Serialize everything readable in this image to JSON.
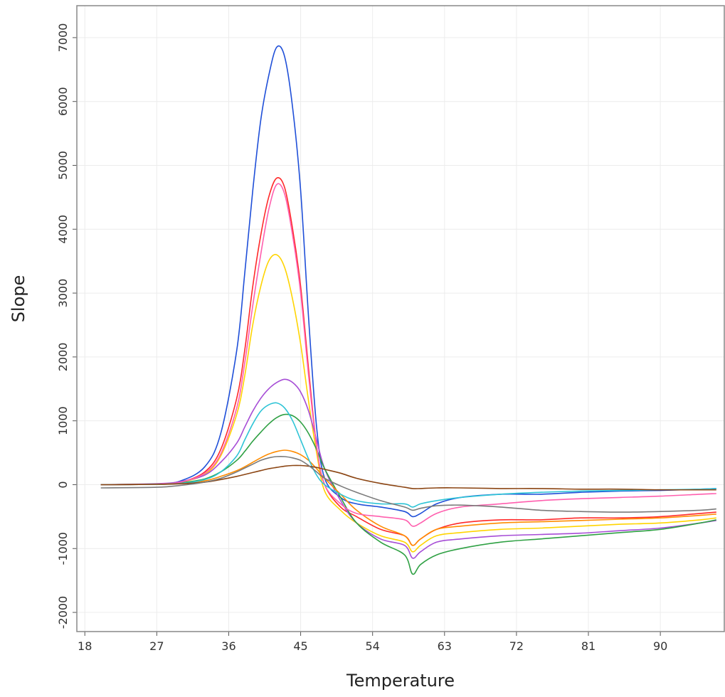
{
  "chart_data": {
    "type": "line",
    "title": "",
    "xlabel": "Temperature",
    "ylabel": "Slope",
    "xlim": [
      17,
      98
    ],
    "ylim": [
      -2300,
      7500
    ],
    "x_ticks": [
      18,
      27,
      36,
      45,
      54,
      63,
      72,
      81,
      90
    ],
    "x_tick_labels": [
      "18",
      "27",
      "36",
      "45",
      "54",
      "63",
      "72",
      "81",
      "90"
    ],
    "y_ticks": [
      -2000,
      -1000,
      0,
      1000,
      2000,
      3000,
      4000,
      5000,
      6000,
      7000
    ],
    "y_tick_labels": [
      "-2000",
      "-1000",
      "0",
      "1000",
      "2000",
      "3000",
      "4000",
      "5000",
      "6000",
      "7000"
    ],
    "grid": true,
    "legend": "none",
    "colors": [
      "#1f4fd8",
      "#ff2a2a",
      "#ffd400",
      "#a64dd6",
      "#2ea043",
      "#ff8c00",
      "#ff5fae",
      "#2ec4d6",
      "#8b4513",
      "#7a7a7a"
    ],
    "series": [
      {
        "x": [
          20,
          27,
          30,
          33,
          35,
          37,
          38,
          39,
          40,
          41,
          42,
          43,
          44,
          45,
          46,
          47,
          48,
          50,
          52,
          55,
          58,
          59,
          60,
          62,
          65,
          70,
          75,
          80,
          85,
          90,
          95,
          97
        ],
        "y": [
          0,
          10,
          60,
          280,
          800,
          2100,
          3300,
          4600,
          5700,
          6400,
          6850,
          6700,
          5900,
          4600,
          2600,
          900,
          100,
          -200,
          -300,
          -350,
          -420,
          -500,
          -450,
          -300,
          -200,
          -150,
          -150,
          -120,
          -100,
          -90,
          -70,
          -60
        ]
      },
      {
        "x": [
          20,
          27,
          30,
          33,
          35,
          37,
          38,
          39,
          40,
          41,
          42,
          43,
          44,
          45,
          46,
          47,
          48,
          50,
          52,
          55,
          58,
          59,
          60,
          62,
          65,
          70,
          75,
          80,
          85,
          90,
          95,
          97
        ],
        "y": [
          0,
          10,
          40,
          200,
          550,
          1350,
          2100,
          3100,
          3900,
          4500,
          4800,
          4650,
          4000,
          3100,
          1800,
          600,
          0,
          -350,
          -500,
          -700,
          -800,
          -950,
          -850,
          -700,
          -600,
          -550,
          -550,
          -520,
          -520,
          -500,
          -450,
          -430
        ]
      },
      {
        "x": [
          20,
          27,
          30,
          33,
          35,
          37,
          38,
          39,
          40,
          41,
          42,
          43,
          44,
          45,
          46,
          47,
          48,
          50,
          52,
          55,
          58,
          59,
          60,
          62,
          65,
          70,
          75,
          80,
          85,
          90,
          95,
          97
        ],
        "y": [
          0,
          10,
          40,
          160,
          450,
          1100,
          1700,
          2500,
          3100,
          3500,
          3600,
          3400,
          2900,
          2200,
          1300,
          500,
          -100,
          -400,
          -600,
          -800,
          -900,
          -1050,
          -950,
          -800,
          -750,
          -700,
          -680,
          -650,
          -620,
          -600,
          -550,
          -520
        ]
      },
      {
        "x": [
          20,
          27,
          30,
          33,
          35,
          37,
          38,
          39,
          40,
          41,
          42,
          43,
          44,
          45,
          46,
          47,
          48,
          50,
          52,
          55,
          58,
          59,
          60,
          62,
          65,
          70,
          75,
          80,
          85,
          90,
          95,
          97
        ],
        "y": [
          0,
          15,
          50,
          150,
          350,
          650,
          900,
          1150,
          1350,
          1500,
          1600,
          1650,
          1600,
          1450,
          1150,
          700,
          250,
          -250,
          -600,
          -850,
          -950,
          -1150,
          -1050,
          -900,
          -850,
          -800,
          -780,
          -760,
          -720,
          -680,
          -600,
          -560
        ]
      },
      {
        "x": [
          20,
          27,
          30,
          33,
          35,
          37,
          38,
          39,
          40,
          41,
          42,
          43,
          44,
          45,
          46,
          47,
          48,
          50,
          52,
          55,
          58,
          59,
          60,
          62,
          65,
          70,
          75,
          80,
          85,
          90,
          95,
          97
        ],
        "y": [
          0,
          10,
          30,
          90,
          200,
          380,
          520,
          680,
          820,
          950,
          1050,
          1100,
          1080,
          980,
          800,
          550,
          250,
          -200,
          -600,
          -900,
          -1100,
          -1400,
          -1250,
          -1100,
          -1000,
          -900,
          -850,
          -800,
          -750,
          -700,
          -600,
          -550
        ]
      },
      {
        "x": [
          20,
          27,
          30,
          33,
          35,
          37,
          38,
          39,
          40,
          41,
          42,
          43,
          44,
          45,
          46,
          47,
          48,
          50,
          52,
          55,
          58,
          59,
          60,
          62,
          65,
          70,
          75,
          80,
          85,
          90,
          95,
          97
        ],
        "y": [
          0,
          5,
          20,
          60,
          130,
          220,
          280,
          350,
          420,
          480,
          520,
          540,
          520,
          470,
          380,
          250,
          100,
          -150,
          -400,
          -650,
          -800,
          -950,
          -850,
          -700,
          -650,
          -600,
          -580,
          -560,
          -540,
          -520,
          -480,
          -460
        ]
      },
      {
        "x": [
          20,
          27,
          30,
          33,
          35,
          37,
          38,
          39,
          40,
          41,
          42,
          43,
          44,
          45,
          46,
          47,
          48,
          50,
          52,
          55,
          58,
          59,
          60,
          62,
          65,
          70,
          75,
          80,
          85,
          90,
          95,
          97
        ],
        "y": [
          0,
          10,
          40,
          180,
          480,
          1200,
          1900,
          2800,
          3600,
          4300,
          4700,
          4550,
          3900,
          3000,
          1700,
          600,
          0,
          -300,
          -450,
          -500,
          -550,
          -650,
          -600,
          -450,
          -350,
          -300,
          -250,
          -220,
          -200,
          -180,
          -150,
          -140
        ]
      },
      {
        "x": [
          20,
          27,
          30,
          33,
          35,
          37,
          38,
          39,
          40,
          41,
          42,
          43,
          44,
          45,
          46,
          47,
          48,
          50,
          52,
          55,
          58,
          59,
          60,
          62,
          65,
          70,
          75,
          80,
          85,
          90,
          95,
          97
        ],
        "y": [
          0,
          5,
          20,
          80,
          200,
          450,
          700,
          950,
          1150,
          1250,
          1280,
          1200,
          1000,
          700,
          400,
          150,
          0,
          -150,
          -250,
          -300,
          -300,
          -350,
          -300,
          -250,
          -200,
          -150,
          -120,
          -100,
          -90,
          -80,
          -70,
          -60
        ]
      },
      {
        "x": [
          20,
          27,
          30,
          33,
          35,
          37,
          38,
          39,
          40,
          41,
          42,
          43,
          44,
          45,
          46,
          47,
          48,
          50,
          52,
          55,
          58,
          59,
          60,
          62,
          65,
          70,
          75,
          80,
          85,
          90,
          95,
          97
        ],
        "y": [
          0,
          5,
          15,
          40,
          80,
          130,
          160,
          190,
          220,
          250,
          270,
          290,
          300,
          300,
          290,
          270,
          240,
          180,
          100,
          20,
          -40,
          -60,
          -60,
          -50,
          -50,
          -60,
          -60,
          -70,
          -70,
          -80,
          -80,
          -80
        ]
      },
      {
        "x": [
          20,
          27,
          30,
          33,
          35,
          37,
          38,
          39,
          40,
          41,
          42,
          43,
          44,
          45,
          46,
          47,
          48,
          50,
          52,
          55,
          58,
          59,
          60,
          62,
          65,
          70,
          75,
          80,
          85,
          90,
          95,
          97
        ],
        "y": [
          -50,
          -40,
          -10,
          40,
          100,
          200,
          260,
          320,
          380,
          420,
          440,
          440,
          420,
          380,
          300,
          200,
          100,
          -20,
          -120,
          -250,
          -350,
          -400,
          -370,
          -330,
          -320,
          -350,
          -400,
          -420,
          -430,
          -420,
          -400,
          -380
        ]
      }
    ]
  }
}
